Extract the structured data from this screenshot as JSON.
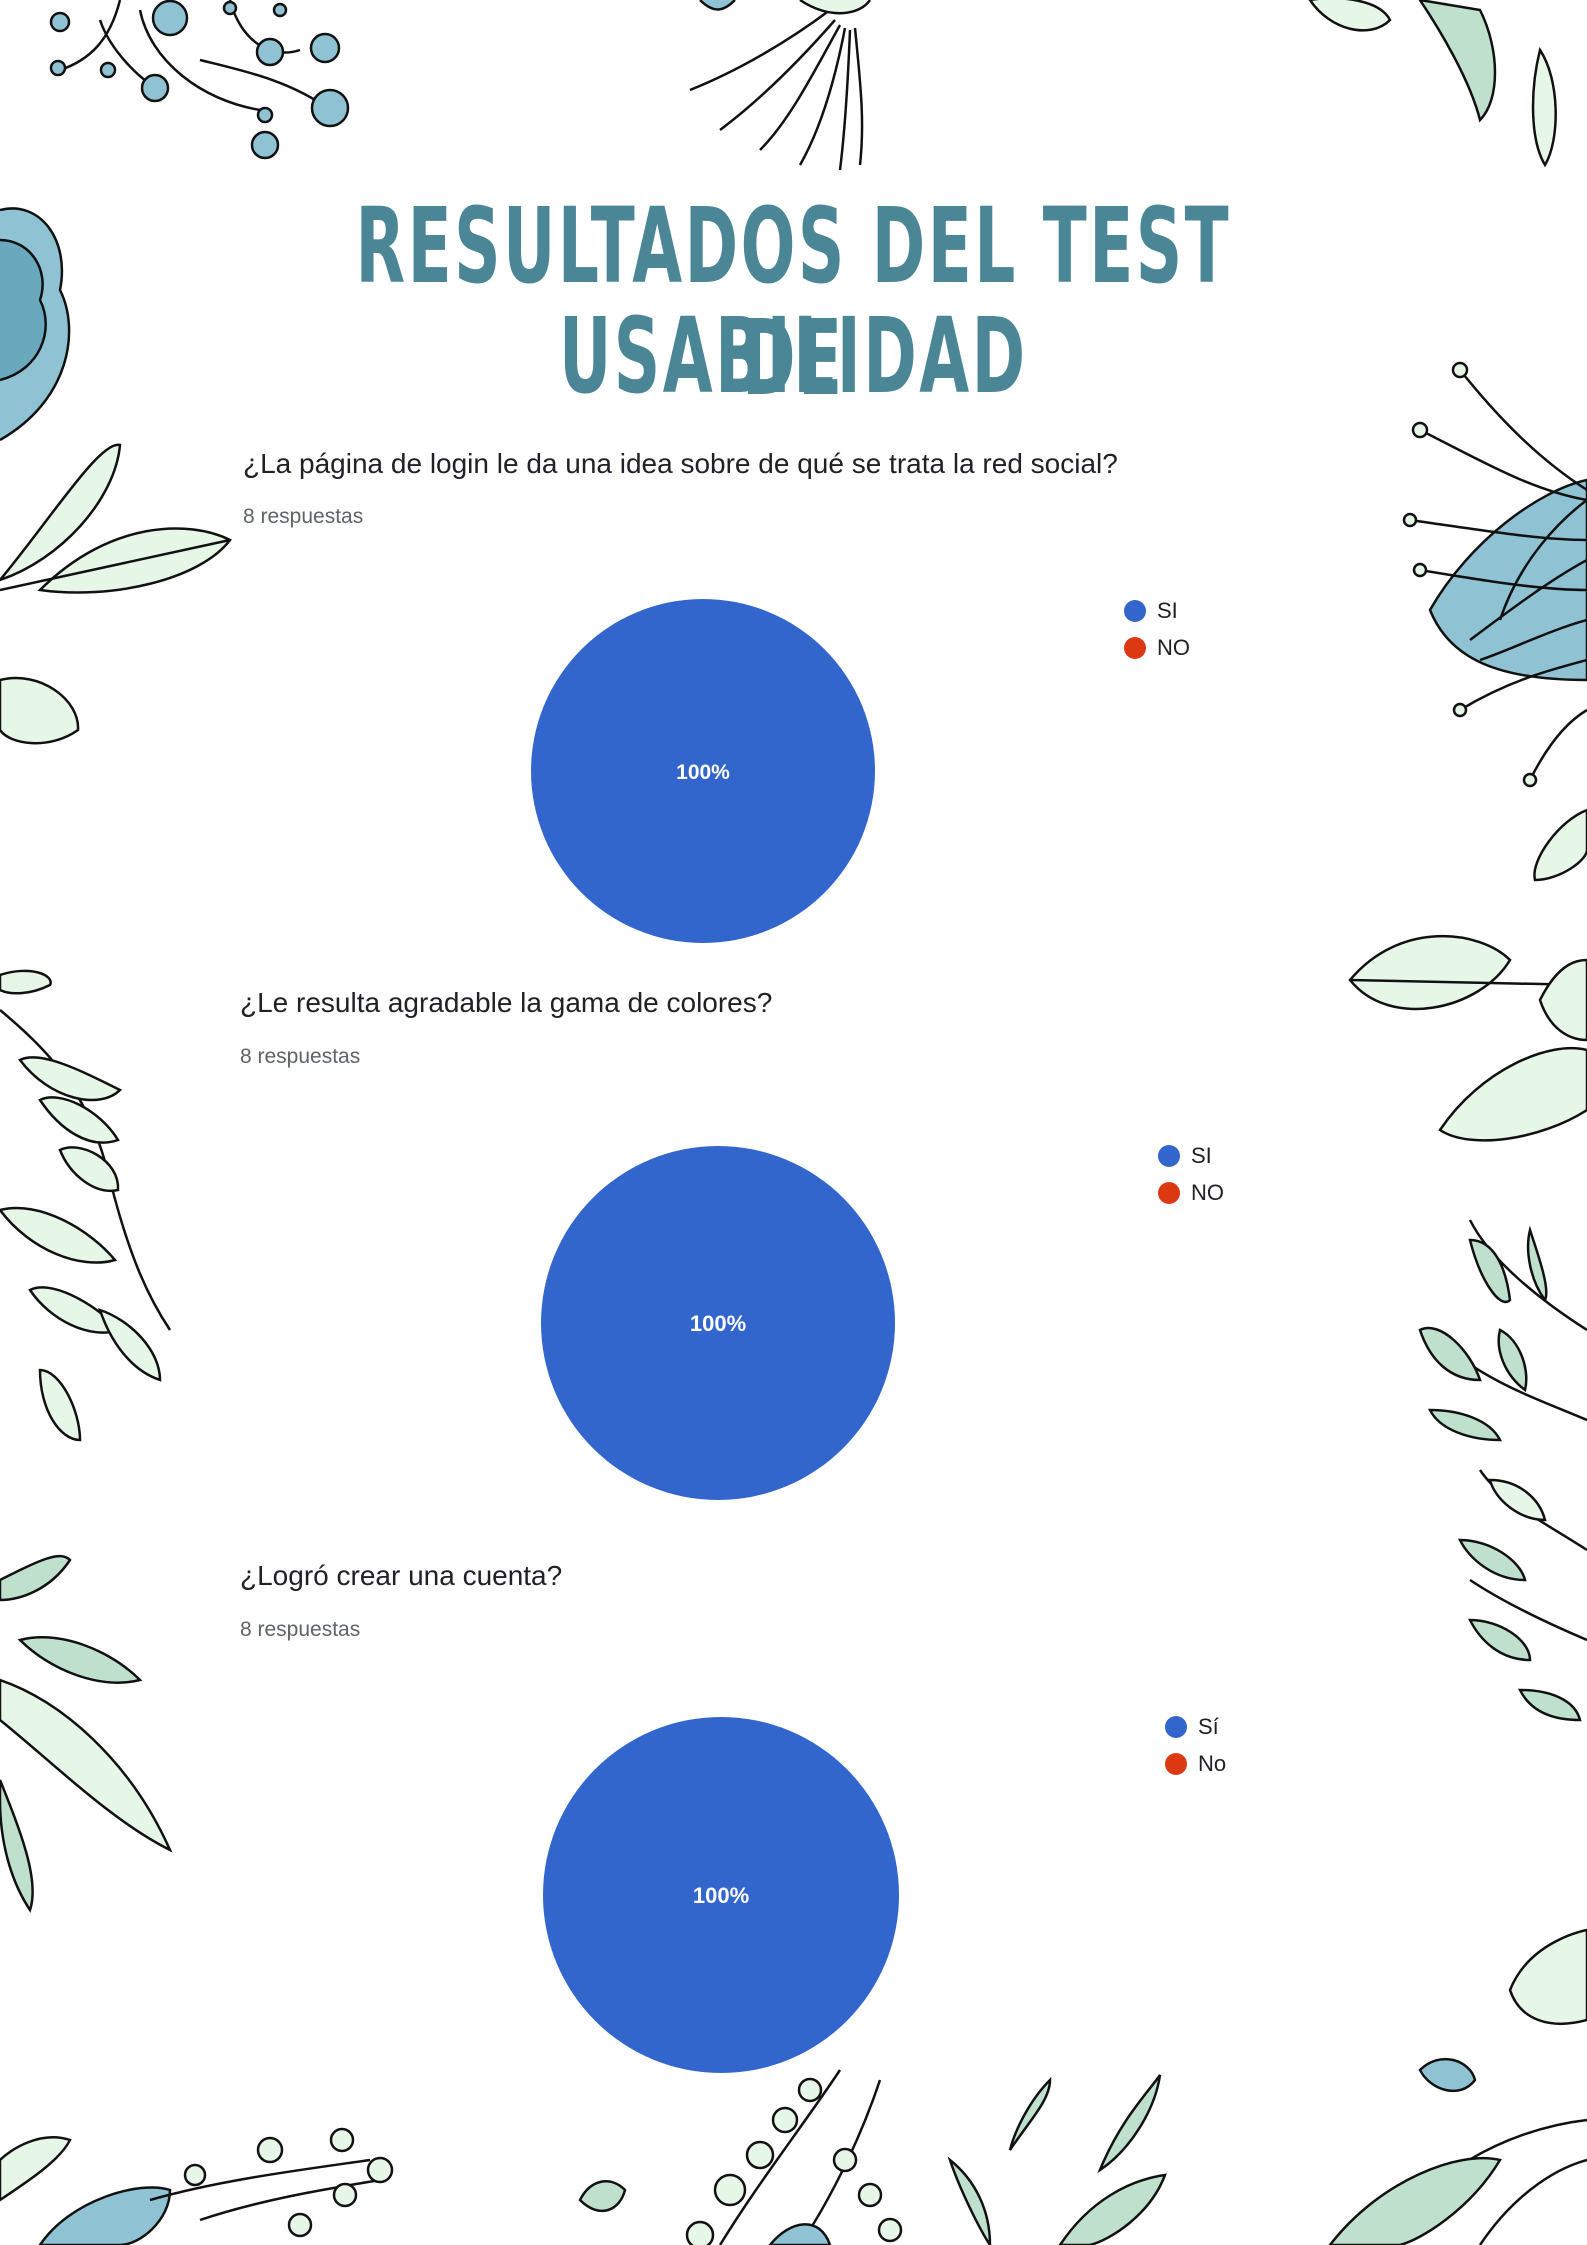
{
  "page": {
    "title_line1": "RESULTADOS DEL TEST DE",
    "title_line2": "USABILIDAD"
  },
  "colors": {
    "title": "#4b8697",
    "pie_si": "#3366cc",
    "pie_no": "#dc3912"
  },
  "chart_data": [
    {
      "type": "pie",
      "title": "¿La página de login le da una idea sobre de qué se trata la red social?",
      "responses": "8 respuestas",
      "labels": [
        "SI",
        "NO"
      ],
      "values": [
        8,
        0
      ],
      "data_labels": [
        "100%"
      ],
      "colors": [
        "#3366cc",
        "#dc3912"
      ],
      "legend": "top-right"
    },
    {
      "type": "pie",
      "title": "¿Le resulta agradable la gama de colores?",
      "responses": "8 respuestas",
      "labels": [
        "SI",
        "NO"
      ],
      "values": [
        8,
        0
      ],
      "data_labels": [
        "100%"
      ],
      "colors": [
        "#3366cc",
        "#dc3912"
      ],
      "legend": "top-right"
    },
    {
      "type": "pie",
      "title": "¿Logró crear una cuenta?",
      "responses": "8 respuestas",
      "labels": [
        "Sí",
        "No"
      ],
      "values": [
        8,
        0
      ],
      "data_labels": [
        "100%"
      ],
      "colors": [
        "#3366cc",
        "#dc3912"
      ],
      "legend": "top-right"
    }
  ]
}
